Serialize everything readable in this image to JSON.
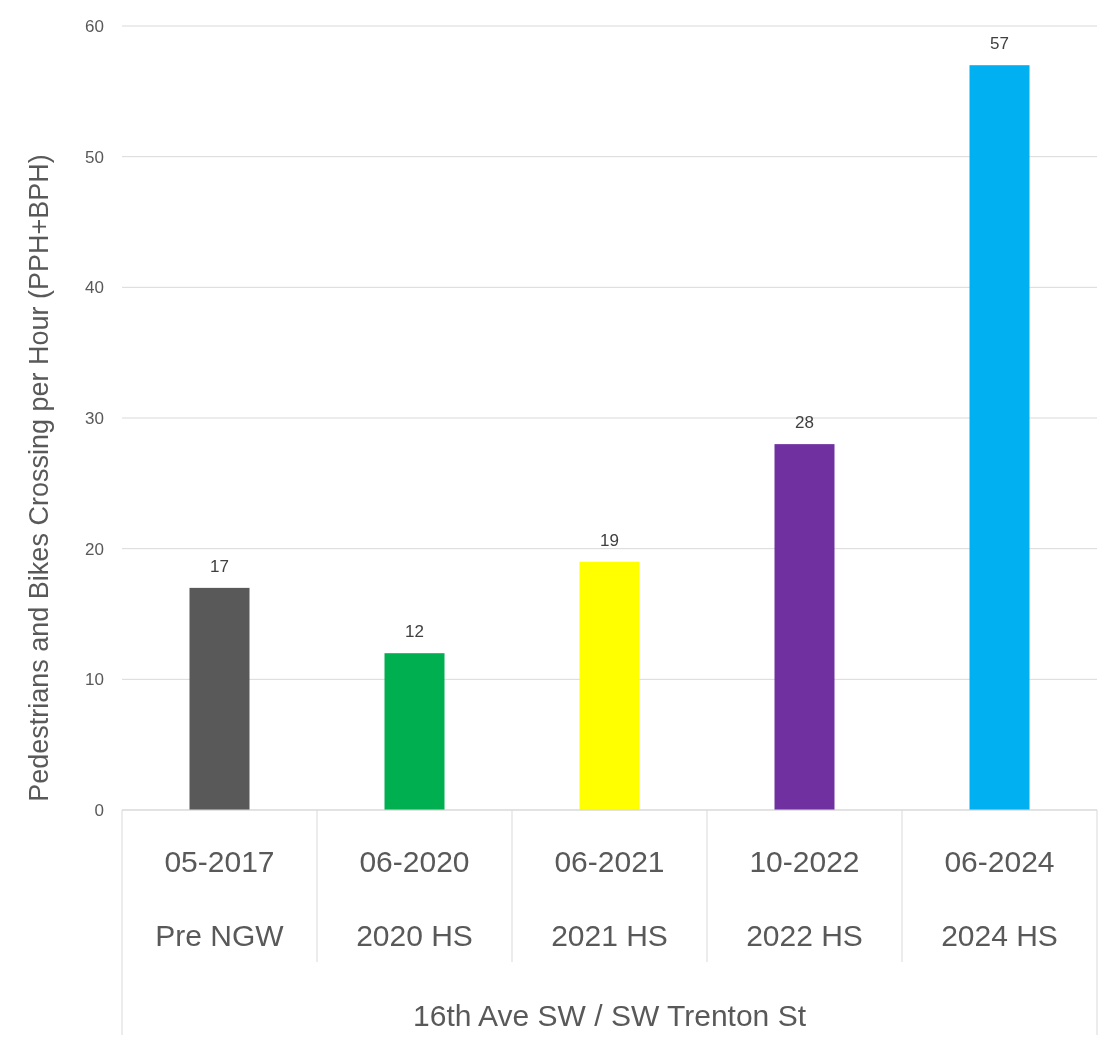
{
  "chart_data": {
    "type": "bar",
    "ylabel": "Pedestrians and Bikes Crossing per Hour (PPH+BPH)",
    "annotations": [
      "16th Ave SW / SW Trenton St"
    ],
    "categories": [
      "05-2017\nPre NGW",
      "06-2020\n2020 HS",
      "06-2021\n2021 HS",
      "10-2022\n2022 HS",
      "06-2024\n2024 HS"
    ],
    "values": [
      17,
      12,
      19,
      28,
      57
    ],
    "colors": [
      "#595959",
      "#00b050",
      "#ffff00",
      "#7030a0",
      "#00b0f0"
    ],
    "ylim": [
      0,
      60
    ],
    "yticks": [
      0,
      10,
      20,
      30,
      40,
      50,
      60
    ],
    "grid": "y",
    "data_labels": true
  }
}
